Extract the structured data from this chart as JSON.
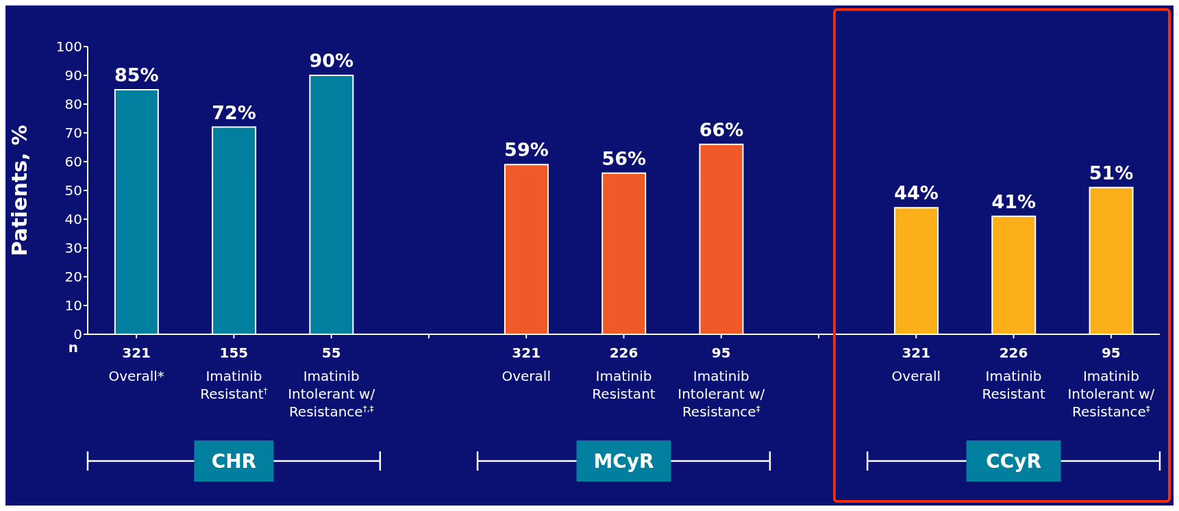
{
  "chart_data": {
    "type": "bar",
    "ylabel": "Patients, %",
    "categories": [
      "321\nOverall*",
      "155\nImatinib\nResistant$^{†}$",
      "55\nImatinib\nIntolerant w/\nResistance$^{†,‡}$",
      null,
      "321\nOverall",
      "226\nImatinib\nResistant",
      "95\nImatinib\nIntolerant w/\nResistance$^{‡}$",
      null,
      "321\nOverall",
      "226\nImatinib\nResistant",
      "95\nImatinib\nIntolerant w/\nResistance$^{‡}$"
    ],
    "values": [
      85,
      72,
      90,
      null,
      59,
      56,
      66,
      null,
      44,
      41,
      51
    ],
    "value_labels": [
      "85%",
      "72%",
      "90%",
      null,
      "59%",
      "56%",
      "66%",
      null,
      "44%",
      "41%",
      "51%"
    ],
    "colors": [
      "#00809e",
      "#00809e",
      "#00809e",
      null,
      "#f05a28",
      "#f05a28",
      "#f05a28",
      null,
      "#fbb01a",
      "#fbb01a",
      "#fbb01a"
    ],
    "ylim": [
      0,
      100
    ],
    "yticks": [
      0,
      10,
      20,
      30,
      40,
      50,
      60,
      70,
      80,
      90,
      100
    ],
    "annotations": [
      "n",
      "CHR",
      "MCyR",
      "CCyR"
    ]
  }
}
